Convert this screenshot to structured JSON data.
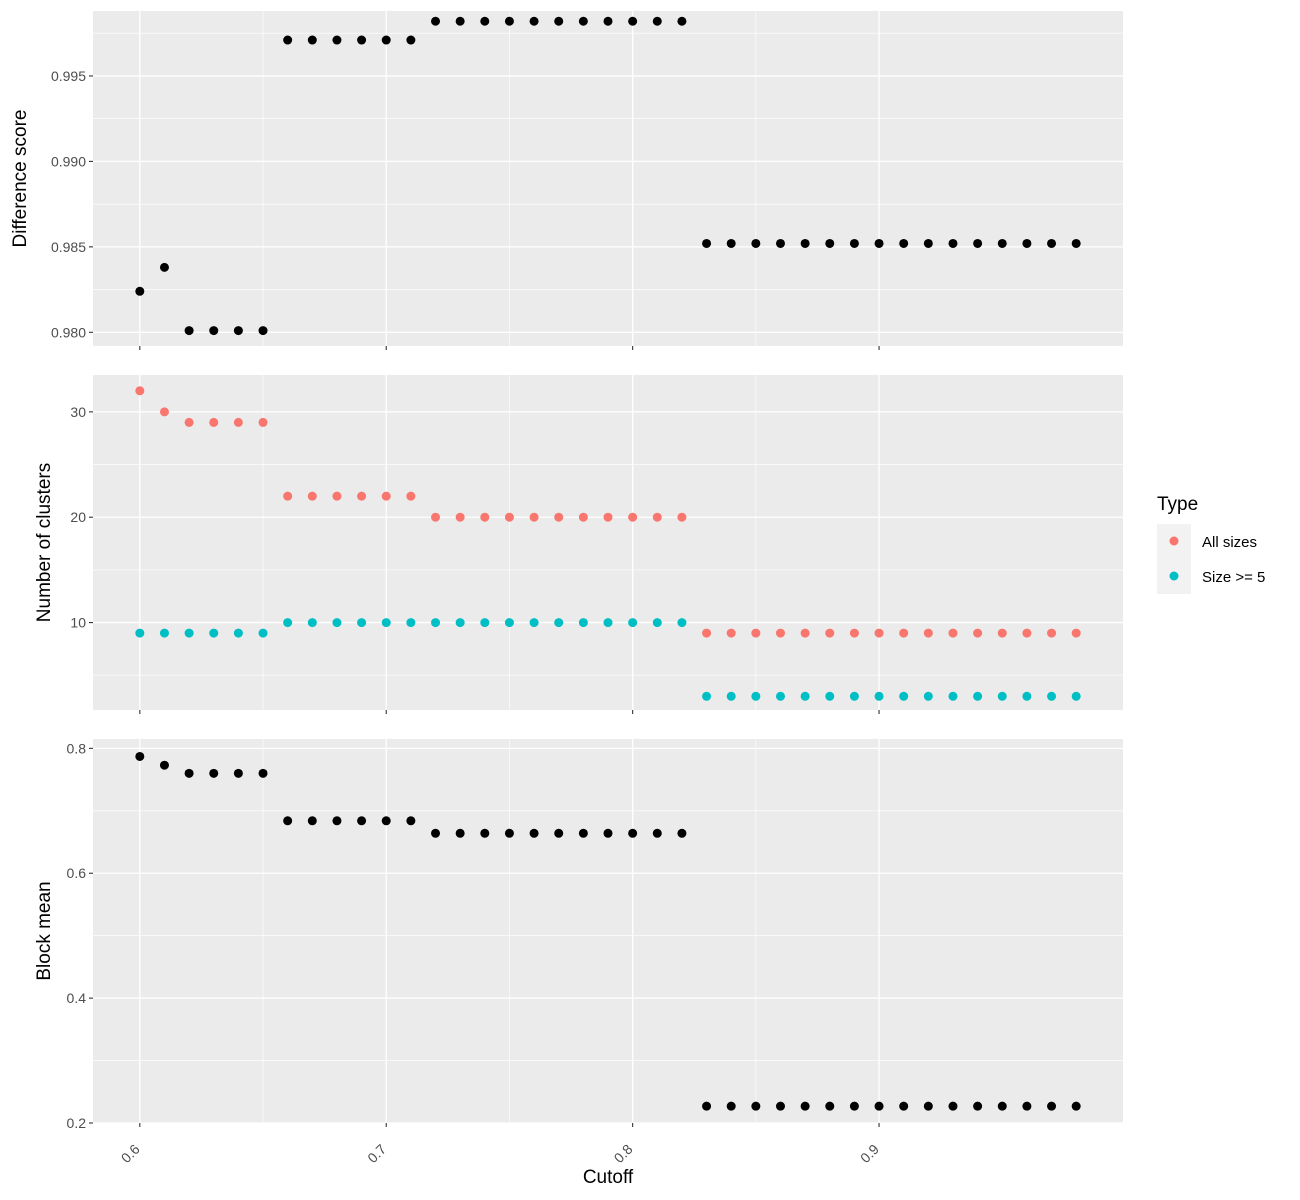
{
  "chart_data": {
    "type": "scatter",
    "xlabel": "Cutoff",
    "x_ticks": [
      "0.6",
      "0.7",
      "0.8",
      "0.9"
    ],
    "xlim": [
      0.581,
      0.999
    ],
    "x": [
      0.6,
      0.61,
      0.62,
      0.63,
      0.64,
      0.65,
      0.66,
      0.67,
      0.68,
      0.69,
      0.7,
      0.71,
      0.72,
      0.73,
      0.74,
      0.75,
      0.76,
      0.77,
      0.78,
      0.79,
      0.8,
      0.81,
      0.82,
      0.83,
      0.84,
      0.85,
      0.86,
      0.87,
      0.88,
      0.89,
      0.9,
      0.91,
      0.92,
      0.93,
      0.94,
      0.95,
      0.96,
      0.97,
      0.98
    ],
    "panels": [
      {
        "ylabel": "Difference score",
        "ylim": [
          0.9792,
          0.9988
        ],
        "y_ticks": [
          "0.980",
          "0.985",
          "0.990",
          "0.995"
        ],
        "series": [
          {
            "color": "#000000",
            "values": [
              0.9824,
              0.9838,
              0.9801,
              0.9801,
              0.9801,
              0.9801,
              0.9971,
              0.9971,
              0.9971,
              0.9971,
              0.9971,
              0.9971,
              0.9982,
              0.9982,
              0.9982,
              0.9982,
              0.9982,
              0.9982,
              0.9982,
              0.9982,
              0.9982,
              0.9982,
              0.9982,
              0.9852,
              0.9852,
              0.9852,
              0.9852,
              0.9852,
              0.9852,
              0.9852,
              0.9852,
              0.9852,
              0.9852,
              0.9852,
              0.9852,
              0.9852,
              0.9852,
              0.9852,
              0.9852
            ]
          }
        ]
      },
      {
        "ylabel": "Number of clusters",
        "ylim": [
          1.7,
          33.5
        ],
        "y_ticks": [
          "10",
          "20",
          "30"
        ],
        "series": [
          {
            "name": "All sizes",
            "color": "#F8766D",
            "values": [
              32,
              30,
              29,
              29,
              29,
              29,
              22,
              22,
              22,
              22,
              22,
              22,
              20,
              20,
              20,
              20,
              20,
              20,
              20,
              20,
              20,
              20,
              20,
              9,
              9,
              9,
              9,
              9,
              9,
              9,
              9,
              9,
              9,
              9,
              9,
              9,
              9,
              9,
              9
            ]
          },
          {
            "name": "Size >= 5",
            "color": "#00BFC4",
            "values": [
              9,
              9,
              9,
              9,
              9,
              9,
              10,
              10,
              10,
              10,
              10,
              10,
              10,
              10,
              10,
              10,
              10,
              10,
              10,
              10,
              10,
              10,
              10,
              3,
              3,
              3,
              3,
              3,
              3,
              3,
              3,
              3,
              3,
              3,
              3,
              3,
              3,
              3,
              3
            ]
          }
        ]
      },
      {
        "ylabel": "Block mean",
        "ylim": [
          0.2,
          0.815
        ],
        "y_ticks": [
          "0.2",
          "0.4",
          "0.6",
          "0.8"
        ],
        "series": [
          {
            "color": "#000000",
            "values": [
              0.787,
              0.773,
              0.76,
              0.76,
              0.76,
              0.76,
              0.684,
              0.684,
              0.684,
              0.684,
              0.684,
              0.684,
              0.664,
              0.664,
              0.664,
              0.664,
              0.664,
              0.664,
              0.664,
              0.664,
              0.664,
              0.664,
              0.664,
              0.227,
              0.227,
              0.227,
              0.227,
              0.227,
              0.227,
              0.227,
              0.227,
              0.227,
              0.227,
              0.227,
              0.227,
              0.227,
              0.227,
              0.227,
              0.227
            ]
          }
        ]
      }
    ],
    "legend": {
      "title": "Type",
      "position": "right",
      "entries": [
        {
          "label": "All sizes",
          "color": "#F8766D"
        },
        {
          "label": "Size >= 5",
          "color": "#00BFC4"
        }
      ]
    },
    "grid": true,
    "panel_background": "#EBEBEB",
    "grid_color": "#FFFFFF"
  }
}
